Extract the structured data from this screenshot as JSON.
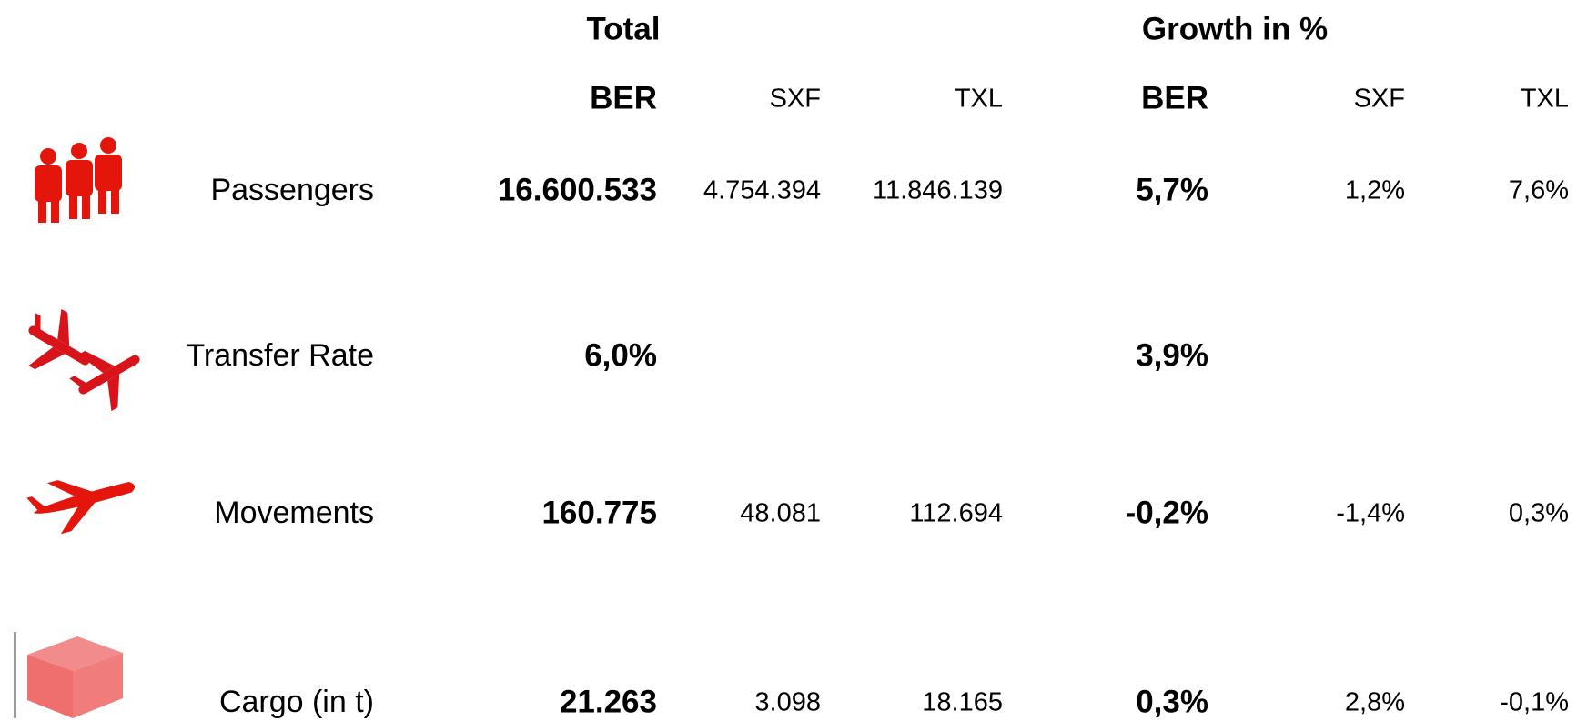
{
  "header": {
    "groups": [
      "Total",
      "Growth in %"
    ],
    "columns": [
      "BER",
      "SXF",
      "TXL",
      "BER",
      "SXF",
      "TXL"
    ]
  },
  "rows": [
    {
      "label": "Passengers",
      "values": [
        "16.600.533",
        "4.754.394",
        "11.846.139",
        "5,7%",
        "1,2%",
        "7,6%"
      ]
    },
    {
      "label": "Transfer Rate",
      "values": [
        "6,0%",
        null,
        null,
        "3,9%",
        null,
        null
      ]
    },
    {
      "label": "Movements",
      "values": [
        "160.775",
        "48.081",
        "112.694",
        "-0,2%",
        "-1,4%",
        "0,3%"
      ]
    },
    {
      "label": "Cargo (in t)",
      "values": [
        "21.263",
        "3.098",
        "18.165",
        "0,3%",
        "2,8%",
        "-0,1%"
      ]
    }
  ]
}
